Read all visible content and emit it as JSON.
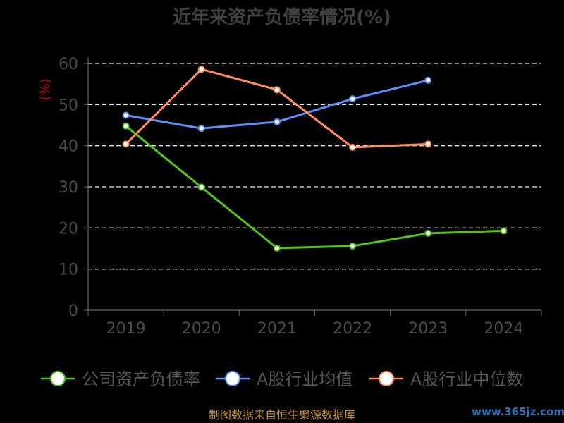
{
  "chart_data": {
    "type": "line",
    "title": "近年来资产负债率情况(%)",
    "ylabel": "(%)",
    "categories": [
      "2019",
      "2020",
      "2021",
      "2022",
      "2023",
      "2024"
    ],
    "ylim": [
      0,
      60
    ],
    "yticks": [
      0,
      10,
      20,
      30,
      40,
      50,
      60
    ],
    "grid": true,
    "legend_position": "bottom",
    "series": [
      {
        "name": "公司资产负债率",
        "color": "#52c41a",
        "values": [
          44.8,
          29.9,
          15.1,
          15.6,
          18.7,
          19.3
        ]
      },
      {
        "name": "A股行业均值",
        "color": "#5b8ff9",
        "values": [
          47.4,
          44.2,
          45.8,
          51.4,
          55.9,
          null
        ]
      },
      {
        "name": "A股行业中位数",
        "color": "#ff8c5a",
        "values": [
          40.4,
          58.6,
          53.6,
          39.6,
          40.4,
          null
        ]
      }
    ]
  },
  "source_text": "制图数据来自恒生聚源数据库",
  "watermark_text": "www.365jz.com"
}
